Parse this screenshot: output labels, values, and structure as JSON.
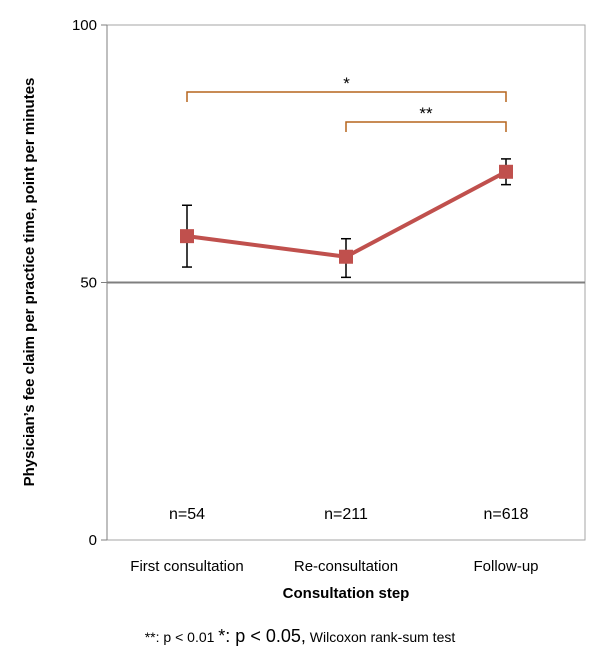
{
  "chart_data": {
    "type": "line",
    "categories": [
      "First consultation",
      "Re-consultation",
      "Follow-up"
    ],
    "series": [
      {
        "values": [
          59,
          55,
          71.5
        ],
        "error_low": [
          53,
          51,
          69
        ],
        "error_high": [
          65,
          58.5,
          74
        ],
        "color": "#c0504d"
      }
    ],
    "xlabel": "Consultation step",
    "ylabel": "Physician’s fee claim per practice time, point per minutes",
    "ylim": [
      0,
      100
    ],
    "yticks": [
      "0",
      "50",
      "100"
    ],
    "reference_line": 50,
    "n_labels": [
      "n=54",
      "n=211",
      "n=618"
    ],
    "significance": [
      {
        "from": "First consultation",
        "to": "Follow-up",
        "label": "*"
      },
      {
        "from": "Re-consultation",
        "to": "Follow-up",
        "label": "**"
      }
    ],
    "bracket_color": "#b5651d",
    "grid": false
  },
  "footnote": {
    "part1": "**: p < 0.01",
    "part2": "*: p < 0.05,",
    "part3": "Wilcoxon rank-sum test"
  }
}
